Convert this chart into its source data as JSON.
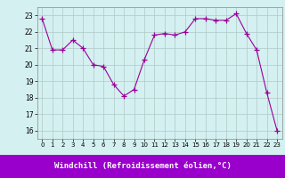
{
  "x": [
    0,
    1,
    2,
    3,
    4,
    5,
    6,
    7,
    8,
    9,
    10,
    11,
    12,
    13,
    14,
    15,
    16,
    17,
    18,
    19,
    20,
    21,
    22,
    23
  ],
  "y": [
    22.8,
    20.9,
    20.9,
    21.5,
    21.0,
    20.0,
    19.9,
    18.8,
    18.1,
    18.5,
    20.3,
    21.8,
    21.9,
    21.8,
    22.0,
    22.8,
    22.8,
    22.7,
    22.7,
    23.1,
    21.9,
    20.9,
    18.3,
    16.0
  ],
  "line_color": "#990099",
  "marker": "+",
  "marker_size": 4,
  "marker_lw": 1.0,
  "bg_color": "#d4f0f0",
  "grid_color": "#b0c8c8",
  "xlabel": "Windchill (Refroidissement éolien,°C)",
  "xlabel_bg": "#9900cc",
  "xlabel_color": "#ffffff",
  "ylim": [
    15.5,
    23.5
  ],
  "xlim": [
    -0.5,
    23.5
  ],
  "yticks": [
    16,
    17,
    18,
    19,
    20,
    21,
    22,
    23
  ],
  "xticks": [
    0,
    1,
    2,
    3,
    4,
    5,
    6,
    7,
    8,
    9,
    10,
    11,
    12,
    13,
    14,
    15,
    16,
    17,
    18,
    19,
    20,
    21,
    22,
    23
  ]
}
